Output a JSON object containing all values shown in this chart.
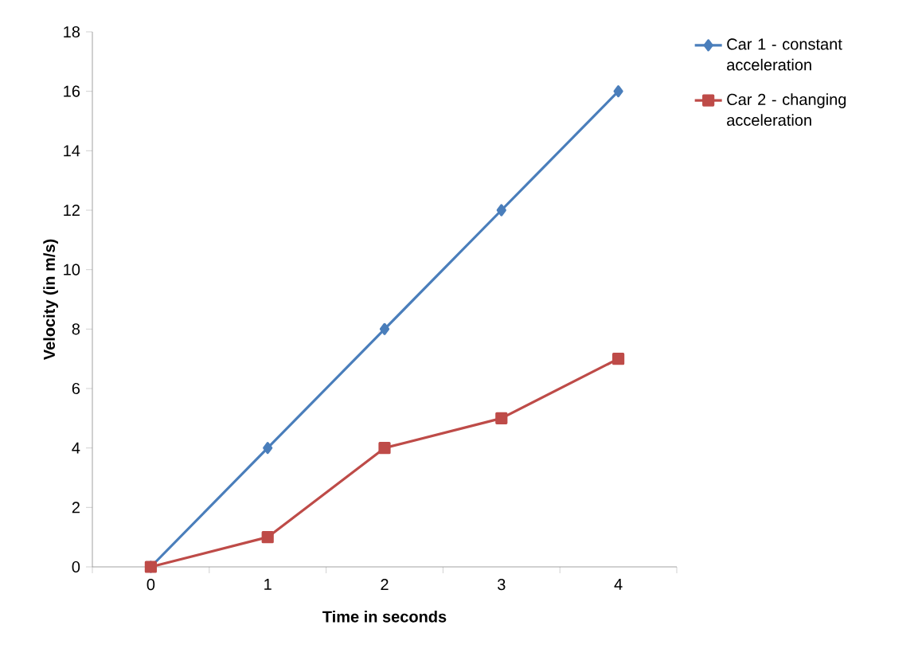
{
  "chart_data": {
    "type": "line",
    "xlabel": "Time in seconds",
    "ylabel": "Velocity (in m/s)",
    "categories": [
      "0",
      "1",
      "2",
      "3",
      "4"
    ],
    "series": [
      {
        "name": "Car 1 - constant acceleration",
        "color": "#4a7ebb",
        "marker": "diamond",
        "values": [
          0,
          4,
          8,
          12,
          16
        ]
      },
      {
        "name": "Car 2 - changing acceleration",
        "color": "#be4b48",
        "marker": "square",
        "values": [
          0,
          1,
          4,
          5,
          7
        ]
      }
    ],
    "ylim": [
      0,
      18
    ],
    "yticks": [
      0,
      2,
      4,
      6,
      8,
      10,
      12,
      14,
      16,
      18
    ],
    "grid": false,
    "legend": "top right",
    "line_style": "solid"
  }
}
